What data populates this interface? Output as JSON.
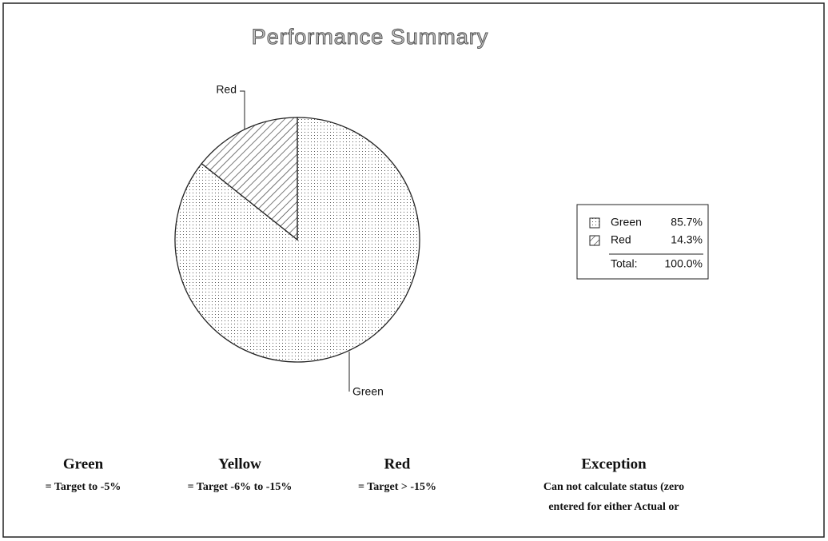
{
  "chart_data": {
    "type": "pie",
    "title": "Performance Summary",
    "categories": [
      "Green",
      "Red"
    ],
    "values": [
      85.7,
      14.3
    ],
    "value_labels": [
      "85.7%",
      "14.3%"
    ],
    "patterns": [
      "dots",
      "hatch"
    ],
    "legend_total": {
      "label": "Total:",
      "value": "100.0%"
    }
  },
  "key": [
    {
      "name": "Green",
      "description": "= Target to -5%"
    },
    {
      "name": "Yellow",
      "description": "= Target -6% to -15%"
    },
    {
      "name": "Red",
      "description": "= Target > -15%"
    },
    {
      "name": "Exception",
      "description": [
        "Can not calculate status (zero",
        "entered for either Actual or"
      ]
    }
  ]
}
